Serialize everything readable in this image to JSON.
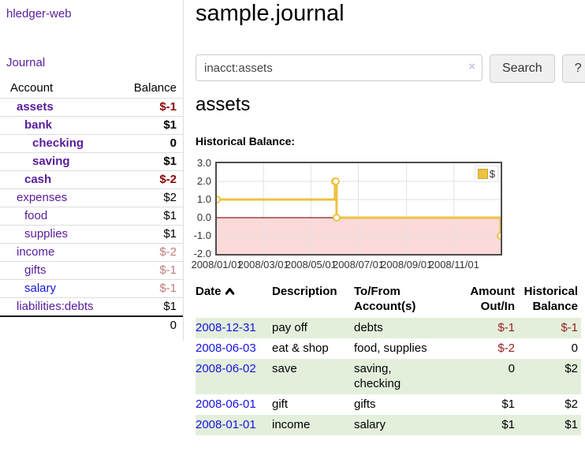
{
  "app": {
    "title": "hledger-web",
    "nav": {
      "journal": "Journal"
    }
  },
  "sidebar": {
    "header": {
      "account": "Account",
      "balance": "Balance"
    },
    "rows": [
      {
        "name": "assets",
        "balance": "$-1"
      },
      {
        "name": "bank",
        "balance": "$1"
      },
      {
        "name": "checking",
        "balance": "0"
      },
      {
        "name": "saving",
        "balance": "$1"
      },
      {
        "name": "cash",
        "balance": "$-2"
      },
      {
        "name": "expenses",
        "balance": "$2"
      },
      {
        "name": "food",
        "balance": "$1"
      },
      {
        "name": "supplies",
        "balance": "$1"
      },
      {
        "name": "income",
        "balance": "$-2"
      },
      {
        "name": "gifts",
        "balance": "$-1"
      },
      {
        "name": "salary",
        "balance": "$-1"
      },
      {
        "name": "liabilities:debts",
        "balance": "$1"
      }
    ],
    "total": "0"
  },
  "main": {
    "title": "sample.journal",
    "search": {
      "value": "inacct:assets",
      "clear_icon": "×",
      "search_label": "Search",
      "help_label": "?"
    },
    "account_heading": "assets",
    "section_label": "Historical Balance:"
  },
  "chart_data": {
    "type": "line",
    "step": true,
    "title": "Historical Balance of assets",
    "series": [
      {
        "name": "$",
        "color": "#EDC240",
        "points": [
          {
            "date": "2008-01-01",
            "value": 1
          },
          {
            "date": "2008-06-01",
            "value": 2
          },
          {
            "date": "2008-06-02",
            "value": 2
          },
          {
            "date": "2008-06-03",
            "value": 0
          },
          {
            "date": "2008-12-31",
            "value": -1
          }
        ]
      }
    ],
    "ylim": [
      -2,
      3
    ],
    "yticks": [
      3,
      2,
      1,
      0,
      -1,
      -2
    ],
    "xticks": [
      "2008/01/01",
      "2008/03/01",
      "2008/05/01",
      "2008/07/01",
      "2008/09/01",
      "2008/11/01"
    ],
    "xrange": [
      "2008-01-01",
      "2008-12-31"
    ],
    "grid": true,
    "negative_fill": "#fbdada",
    "zero_line_color": "#8f1f1f",
    "legend_position": "top-right",
    "legend_label": "$"
  },
  "table": {
    "headers": {
      "date": "Date",
      "description": "Description",
      "account_line1": "To/From",
      "account_line2": "Account(s)",
      "amount_line1": "Amount",
      "amount_line2": "Out/In",
      "balance_line1": "Historical",
      "balance_line2": "Balance"
    },
    "rows": [
      {
        "date": "2008-12-31",
        "description": "pay off",
        "accounts": "debts",
        "accounts2": "",
        "amount": "$-1",
        "balance": "$-1"
      },
      {
        "date": "2008-06-03",
        "description": "eat & shop",
        "accounts": "food, supplies",
        "accounts2": "",
        "amount": "$-2",
        "balance": "0"
      },
      {
        "date": "2008-06-02",
        "description": "save",
        "accounts": "saving,",
        "accounts2": "checking",
        "amount": "0",
        "balance": "$2"
      },
      {
        "date": "2008-06-01",
        "description": "gift",
        "accounts": "gifts",
        "accounts2": "",
        "amount": "$1",
        "balance": "$2"
      },
      {
        "date": "2008-01-01",
        "description": "income",
        "accounts": "salary",
        "accounts2": "",
        "amount": "$1",
        "balance": "$1"
      }
    ]
  }
}
